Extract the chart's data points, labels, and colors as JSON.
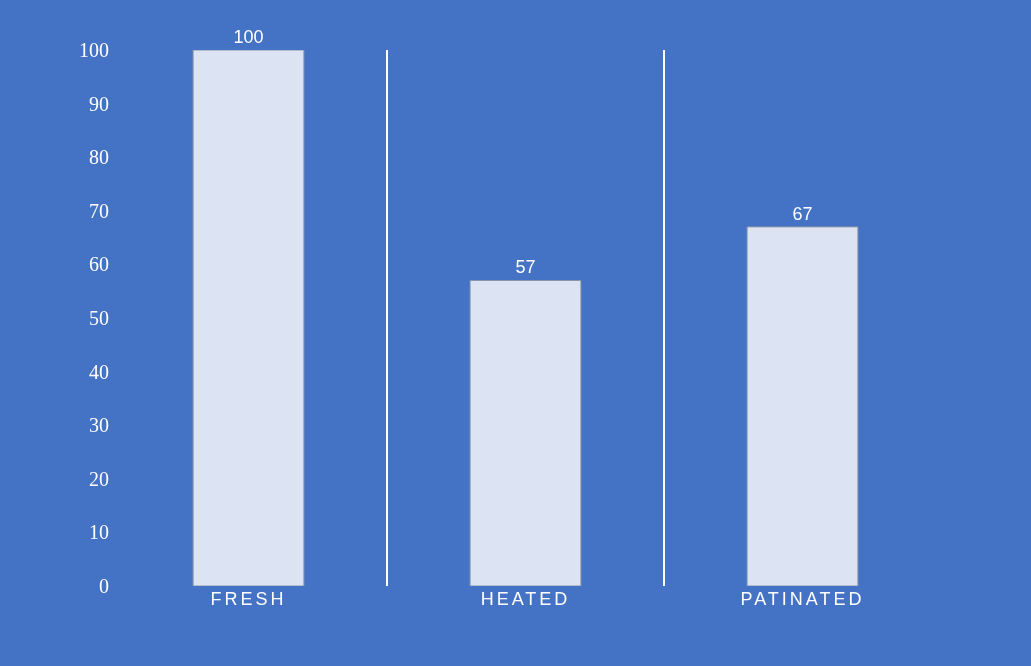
{
  "chart_data": {
    "type": "bar",
    "categories": [
      "FRESH",
      "HEATED",
      "PATINATED"
    ],
    "values": [
      100,
      57,
      67
    ],
    "color": "#dce3f3",
    "ylim": [
      0,
      100
    ],
    "yticks": [
      0,
      10,
      20,
      30,
      40,
      50,
      60,
      70,
      80,
      90,
      100
    ],
    "data_labels": true,
    "grid": "x",
    "legend": false
  }
}
